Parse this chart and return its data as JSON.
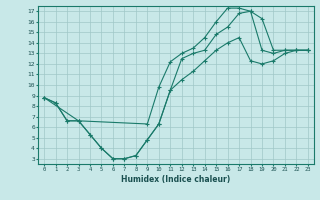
{
  "xlabel": "Humidex (Indice chaleur)",
  "background_color": "#c8e8e8",
  "grid_color": "#a0c8c8",
  "line_color": "#1a7a6a",
  "xlim": [
    -0.5,
    23.5
  ],
  "ylim": [
    2.5,
    17.5
  ],
  "xticks": [
    0,
    1,
    2,
    3,
    4,
    5,
    6,
    7,
    8,
    9,
    10,
    11,
    12,
    13,
    14,
    15,
    16,
    17,
    18,
    19,
    20,
    21,
    22,
    23
  ],
  "yticks": [
    3,
    4,
    5,
    6,
    7,
    8,
    9,
    10,
    11,
    12,
    13,
    14,
    15,
    16,
    17
  ],
  "line1_x": [
    0,
    1,
    2,
    3,
    4,
    5,
    6,
    7,
    8,
    9,
    10,
    11,
    12,
    13,
    14,
    15,
    16,
    17,
    18,
    19,
    20,
    21,
    22,
    23
  ],
  "line1_y": [
    8.8,
    8.3,
    6.6,
    6.6,
    5.3,
    4.0,
    3.0,
    3.0,
    3.3,
    4.8,
    6.3,
    9.5,
    12.5,
    13.0,
    13.3,
    14.8,
    15.5,
    16.8,
    17.0,
    16.3,
    13.3,
    13.3,
    13.3,
    13.3
  ],
  "line2_x": [
    0,
    3,
    9,
    10,
    11,
    12,
    13,
    14,
    15,
    16,
    17,
    18,
    19,
    20,
    21,
    22,
    23
  ],
  "line2_y": [
    8.8,
    6.6,
    6.3,
    9.8,
    12.2,
    13.0,
    13.5,
    14.5,
    16.0,
    17.3,
    17.3,
    17.0,
    13.3,
    13.0,
    13.3,
    13.3,
    13.3
  ],
  "line3_x": [
    0,
    1,
    2,
    3,
    4,
    5,
    6,
    7,
    8,
    9,
    10,
    11,
    12,
    13,
    14,
    15,
    16,
    17,
    18,
    19,
    20,
    21,
    22,
    23
  ],
  "line3_y": [
    8.8,
    8.3,
    6.6,
    6.6,
    5.3,
    4.0,
    3.0,
    3.0,
    3.3,
    4.8,
    6.3,
    9.5,
    10.5,
    11.3,
    12.3,
    13.3,
    14.0,
    14.5,
    12.3,
    12.0,
    12.3,
    13.0,
    13.3,
    13.3
  ]
}
